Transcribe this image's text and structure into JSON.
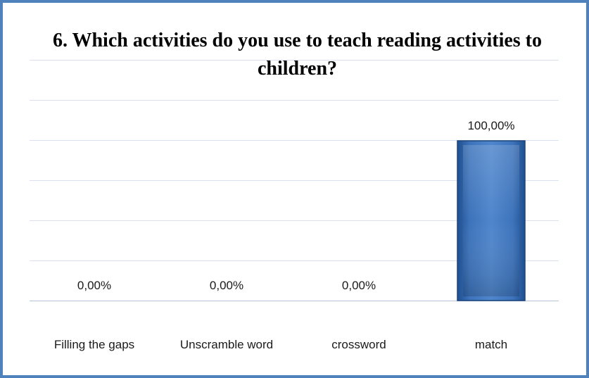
{
  "chart_data": {
    "type": "bar",
    "title": "6. Which activities do you use to teach reading activities to children?",
    "categories": [
      "Filling the gaps",
      "Unscramble word",
      "crossword",
      "match"
    ],
    "values": [
      0,
      0,
      0,
      100
    ],
    "data_labels": [
      "0,00%",
      "0,00%",
      "0,00%",
      "100,00%"
    ],
    "ylim": [
      0,
      100
    ],
    "grid": true,
    "legend": "none",
    "bar_color": "#3a6fb5",
    "border_color": "#4f81bd"
  }
}
